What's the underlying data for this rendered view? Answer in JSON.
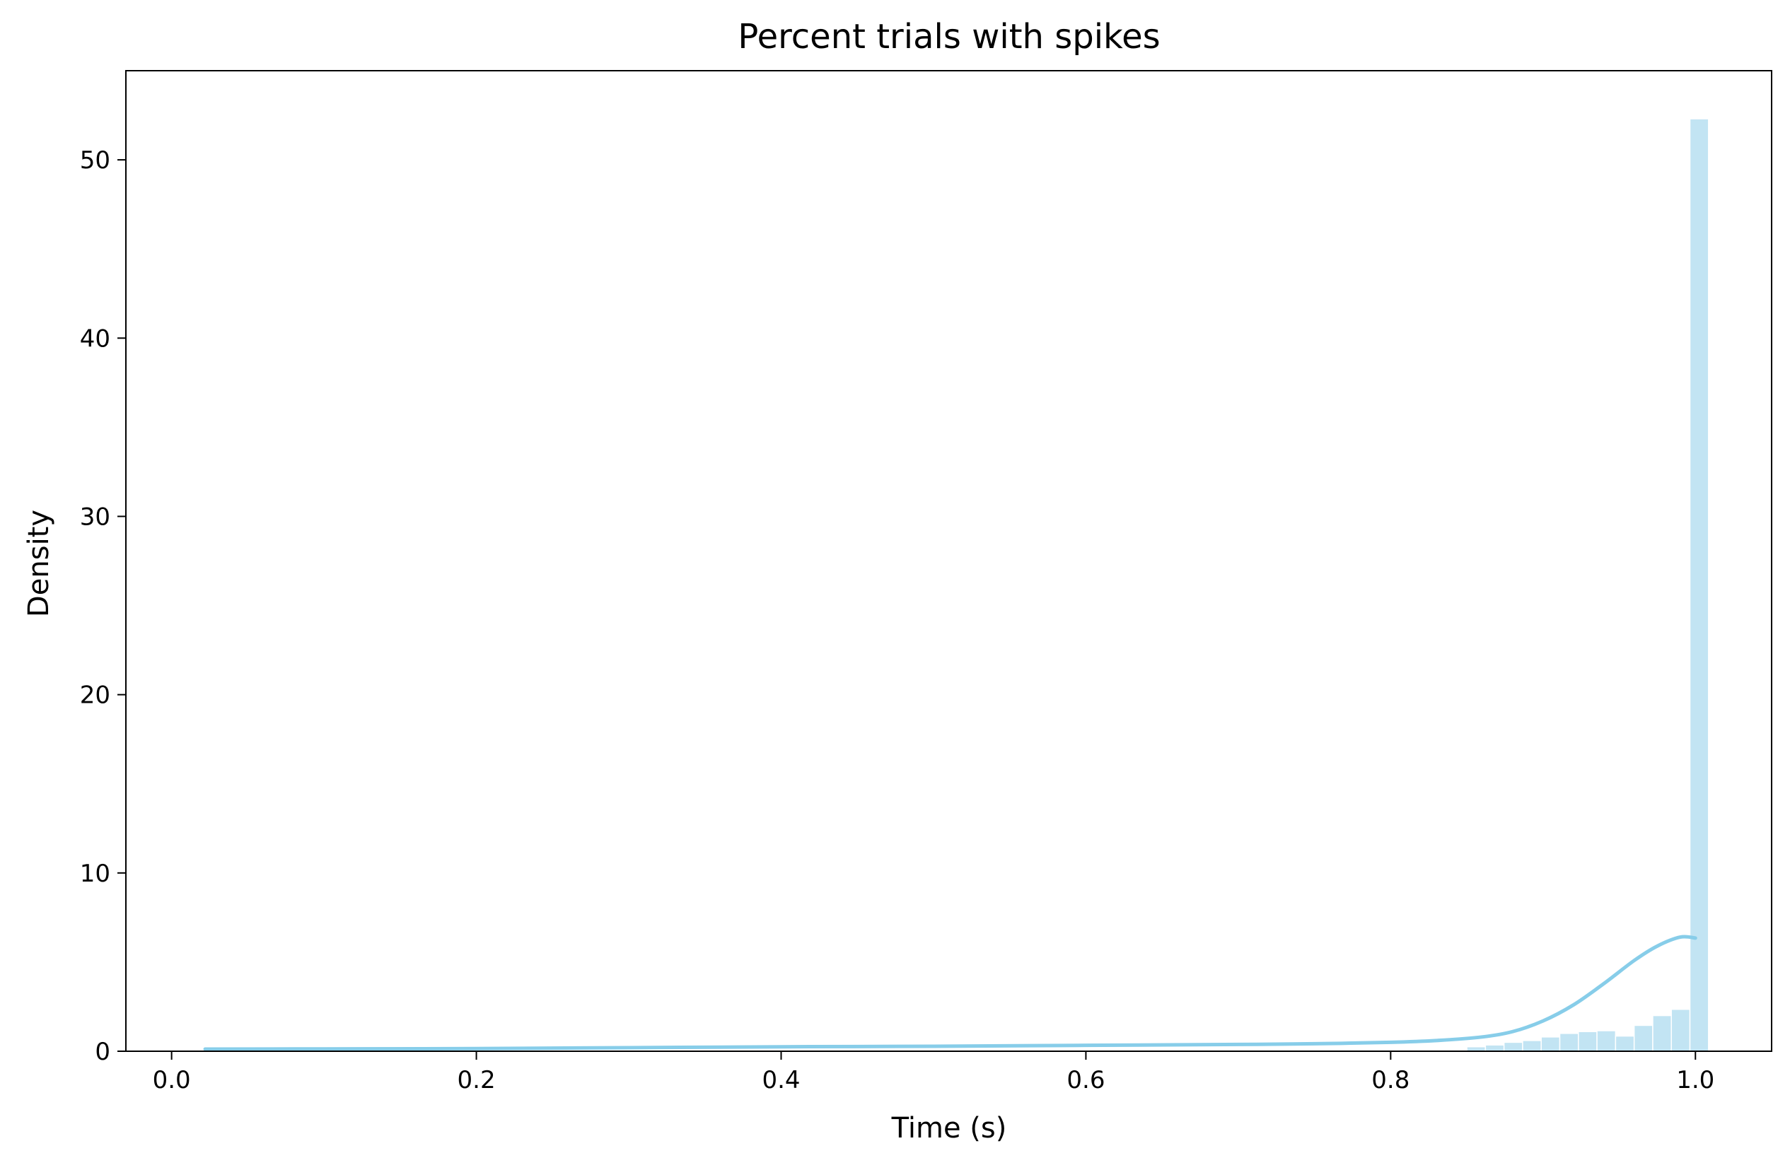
{
  "chart_data": {
    "type": "bar",
    "title": "Percent trials with spikes",
    "xlabel": "Time (s)",
    "ylabel": "Density",
    "xlim": [
      -0.03,
      1.05
    ],
    "ylim": [
      0,
      55
    ],
    "xticks": [
      0.0,
      0.2,
      0.4,
      0.6,
      0.8,
      1.0
    ],
    "xtick_labels": [
      "0.0",
      "0.2",
      "0.4",
      "0.6",
      "0.8",
      "1.0"
    ],
    "yticks": [
      0,
      10,
      20,
      30,
      40,
      50
    ],
    "ytick_labels": [
      "0",
      "10",
      "20",
      "30",
      "40",
      "50"
    ],
    "grid": false,
    "legend": "none",
    "histogram": {
      "bin_width": 0.0122,
      "bins": [
        {
          "x0": 0.85,
          "x1": 0.8622,
          "density": 0.25
        },
        {
          "x0": 0.8622,
          "x1": 0.8744,
          "density": 0.35
        },
        {
          "x0": 0.8744,
          "x1": 0.8866,
          "density": 0.5
        },
        {
          "x0": 0.8866,
          "x1": 0.8988,
          "density": 0.6
        },
        {
          "x0": 0.8988,
          "x1": 0.911,
          "density": 0.8
        },
        {
          "x0": 0.911,
          "x1": 0.9232,
          "density": 1.0
        },
        {
          "x0": 0.9232,
          "x1": 0.9354,
          "density": 1.1
        },
        {
          "x0": 0.9354,
          "x1": 0.9476,
          "density": 1.15
        },
        {
          "x0": 0.9476,
          "x1": 0.9598,
          "density": 0.85
        },
        {
          "x0": 0.9598,
          "x1": 0.972,
          "density": 1.45
        },
        {
          "x0": 0.972,
          "x1": 0.9842,
          "density": 2.0
        },
        {
          "x0": 0.9842,
          "x1": 0.9964,
          "density": 2.35
        },
        {
          "x0": 0.9964,
          "x1": 1.0086,
          "density": 52.3
        }
      ]
    },
    "kde": {
      "x": [
        0.022,
        0.1,
        0.2,
        0.3,
        0.4,
        0.5,
        0.6,
        0.7,
        0.75,
        0.8,
        0.83,
        0.86,
        0.88,
        0.9,
        0.92,
        0.94,
        0.96,
        0.975,
        0.99,
        1.0
      ],
      "y": [
        0.12,
        0.13,
        0.15,
        0.2,
        0.25,
        0.28,
        0.33,
        0.38,
        0.42,
        0.5,
        0.6,
        0.8,
        1.1,
        1.7,
        2.6,
        3.8,
        5.1,
        5.9,
        6.4,
        6.35
      ]
    },
    "colors": {
      "bar_fill": "#c2e4f3",
      "bar_edge": "#ffffff",
      "kde_line": "#87cde9",
      "axes": "#000000",
      "background": "#ffffff"
    }
  }
}
